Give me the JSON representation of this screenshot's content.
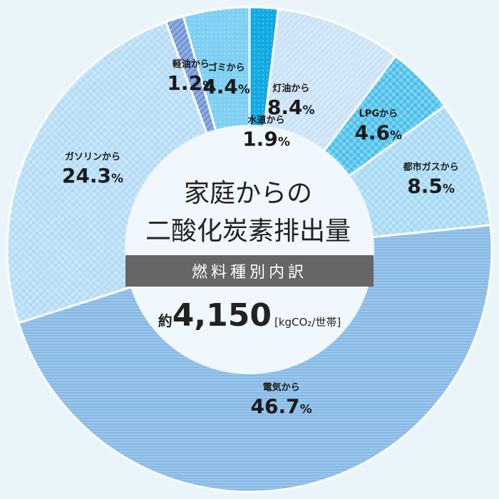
{
  "chart_data": {
    "type": "pie",
    "title": [
      "家庭からの",
      "二酸化炭素排出量"
    ],
    "subtitle": "燃料種別内訳",
    "total": {
      "prefix": "約",
      "value": "4,150",
      "unit": "[kgCO₂/世帯]"
    },
    "slices": [
      {
        "name": "水道から",
        "value": 1.9,
        "label": "1.9",
        "color": "#13a9e2"
      },
      {
        "name": "灯油から",
        "value": 8.4,
        "label": "8.4",
        "color": "#c9e2f6"
      },
      {
        "name": "LPGから",
        "value": 4.6,
        "label": "4.6",
        "color": "#4cc0ec"
      },
      {
        "name": "都市ガスから",
        "value": 8.5,
        "label": "8.5",
        "color": "#a6d9f4"
      },
      {
        "name": "電気から",
        "value": 46.7,
        "label": "46.7",
        "color": "#86b9e5"
      },
      {
        "name": "ガソリンから",
        "value": 24.3,
        "label": "24.3",
        "color": "#b4dcf6"
      },
      {
        "name": "軽油から",
        "value": 1.2,
        "label": "1.2",
        "color": "#6f95d6"
      },
      {
        "name": "ゴミから",
        "value": 4.4,
        "label": "4.4",
        "color": "#7fd0f3"
      }
    ],
    "percent_sign": "%"
  }
}
